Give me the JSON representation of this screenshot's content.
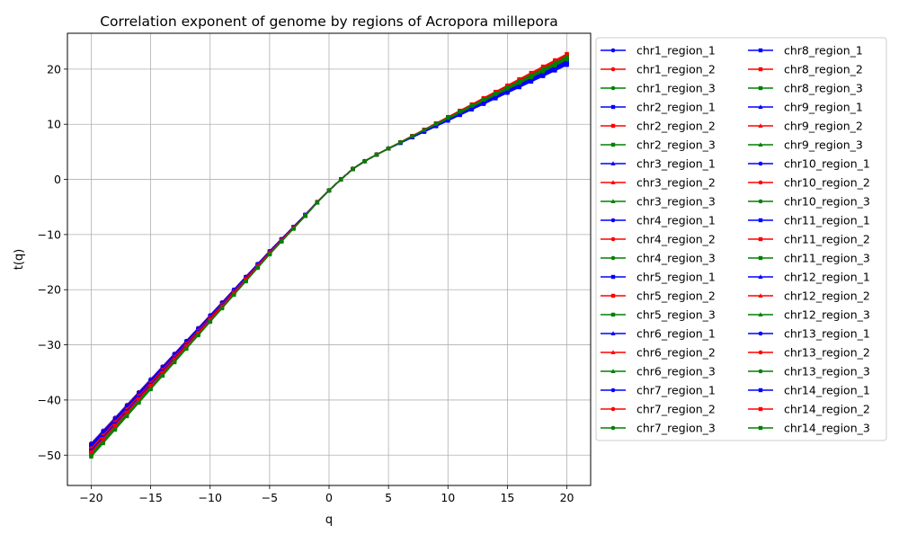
{
  "chart_data": {
    "type": "line",
    "title": "Correlation exponent of genome by regions of Acropora millepora",
    "xlabel": "q",
    "ylabel": "t(q)",
    "xlim": [
      -22,
      22
    ],
    "ylim": [
      -55.5,
      26.5
    ],
    "x_ticks": [
      -20,
      -15,
      -10,
      -5,
      0,
      5,
      10,
      15,
      20
    ],
    "x_tick_labels": [
      "−20",
      "−15",
      "−10",
      "−5",
      "0",
      "5",
      "10",
      "15",
      "20"
    ],
    "y_ticks": [
      -50,
      -40,
      -30,
      -20,
      -10,
      0,
      10,
      20
    ],
    "y_tick_labels": [
      "−50",
      "−40",
      "−30",
      "−20",
      "−10",
      "0",
      "10",
      "20"
    ],
    "grid": true,
    "legend_position": "outside-right",
    "legend_columns": 2,
    "x": [
      -20,
      -19,
      -18,
      -17,
      -16,
      -15,
      -14,
      -13,
      -12,
      -11,
      -10,
      -9,
      -8,
      -7,
      -6,
      -5,
      -4,
      -3,
      -2,
      -1,
      0,
      1,
      2,
      3,
      4,
      5,
      6,
      7,
      8,
      9,
      10,
      11,
      12,
      13,
      14,
      15,
      16,
      17,
      18,
      19,
      20
    ],
    "curve_model": {
      "anchor": [
        [
          0,
          -2
        ],
        [
          1,
          0
        ],
        [
          2,
          1.9
        ],
        [
          3,
          3.3
        ],
        [
          4,
          4.5
        ],
        [
          5,
          5.6
        ]
      ],
      "q_neg": {
        "A": 3.05,
        "B": 0.125
      },
      "q_pos": {
        "A": 1.06,
        "B": 1.0
      },
      "regions": {
        "region_1": 0.0,
        "region_2": 0.5,
        "region_3": 1.0
      }
    },
    "series": [
      {
        "name": "chr1_region_1",
        "color": "#0000ff",
        "marker": "circle",
        "neg_shift": 0.0,
        "pos_shift": 0.0
      },
      {
        "name": "chr1_region_2",
        "color": "#ff0000",
        "marker": "circle",
        "neg_shift": 0.1,
        "pos_shift": 0.9
      },
      {
        "name": "chr1_region_3",
        "color": "#008000",
        "marker": "circle",
        "neg_shift": 0.3,
        "pos_shift": 0.5
      },
      {
        "name": "chr2_region_1",
        "color": "#0000ff",
        "marker": "square",
        "neg_shift": 0.2,
        "pos_shift": 0.4
      },
      {
        "name": "chr2_region_2",
        "color": "#ff0000",
        "marker": "square",
        "neg_shift": 0.5,
        "pos_shift": 1.2
      },
      {
        "name": "chr2_region_3",
        "color": "#008000",
        "marker": "square",
        "neg_shift": 0.8,
        "pos_shift": 0.8
      },
      {
        "name": "chr3_region_1",
        "color": "#0000ff",
        "marker": "triangle",
        "neg_shift": 0.4,
        "pos_shift": 0.2
      },
      {
        "name": "chr3_region_2",
        "color": "#ff0000",
        "marker": "triangle",
        "neg_shift": 0.6,
        "pos_shift": 1.4
      },
      {
        "name": "chr3_region_3",
        "color": "#008000",
        "marker": "triangle",
        "neg_shift": 1.0,
        "pos_shift": 1.0
      },
      {
        "name": "chr4_region_1",
        "color": "#0000ff",
        "marker": "circle",
        "neg_shift": 0.6,
        "pos_shift": 0.5
      },
      {
        "name": "chr4_region_2",
        "color": "#ff0000",
        "marker": "circle",
        "neg_shift": 0.9,
        "pos_shift": 1.1
      },
      {
        "name": "chr4_region_3",
        "color": "#008000",
        "marker": "circle",
        "neg_shift": 1.2,
        "pos_shift": 0.7
      },
      {
        "name": "chr5_region_1",
        "color": "#0000ff",
        "marker": "square",
        "neg_shift": 0.8,
        "pos_shift": 0.1
      },
      {
        "name": "chr5_region_2",
        "color": "#ff0000",
        "marker": "square",
        "neg_shift": 1.1,
        "pos_shift": 1.3
      },
      {
        "name": "chr5_region_3",
        "color": "#008000",
        "marker": "square",
        "neg_shift": 1.6,
        "pos_shift": 0.6
      },
      {
        "name": "chr6_region_1",
        "color": "#0000ff",
        "marker": "triangle",
        "neg_shift": 1.0,
        "pos_shift": 0.3
      },
      {
        "name": "chr6_region_2",
        "color": "#ff0000",
        "marker": "triangle",
        "neg_shift": 1.3,
        "pos_shift": 1.0
      },
      {
        "name": "chr6_region_3",
        "color": "#008000",
        "marker": "triangle",
        "neg_shift": 1.9,
        "pos_shift": 0.9
      },
      {
        "name": "chr7_region_1",
        "color": "#0000ff",
        "marker": "circle",
        "neg_shift": 0.3,
        "pos_shift": 0.6
      },
      {
        "name": "chr7_region_2",
        "color": "#ff0000",
        "marker": "circle",
        "neg_shift": 0.7,
        "pos_shift": 1.5
      },
      {
        "name": "chr7_region_3",
        "color": "#008000",
        "marker": "circle",
        "neg_shift": 1.4,
        "pos_shift": 1.1
      },
      {
        "name": "chr8_region_1",
        "color": "#0000ff",
        "marker": "square",
        "neg_shift": 0.5,
        "pos_shift": -0.3
      },
      {
        "name": "chr8_region_2",
        "color": "#ff0000",
        "marker": "square",
        "neg_shift": 0.8,
        "pos_shift": 1.6
      },
      {
        "name": "chr8_region_3",
        "color": "#008000",
        "marker": "square",
        "neg_shift": 1.7,
        "pos_shift": 1.2
      },
      {
        "name": "chr9_region_1",
        "color": "#0000ff",
        "marker": "triangle",
        "neg_shift": 0.7,
        "pos_shift": 0.0
      },
      {
        "name": "chr9_region_2",
        "color": "#ff0000",
        "marker": "triangle",
        "neg_shift": 1.0,
        "pos_shift": 1.2
      },
      {
        "name": "chr9_region_3",
        "color": "#008000",
        "marker": "triangle",
        "neg_shift": 1.5,
        "pos_shift": 0.8
      },
      {
        "name": "chr10_region_1",
        "color": "#0000ff",
        "marker": "circle",
        "neg_shift": 0.9,
        "pos_shift": 0.7
      },
      {
        "name": "chr10_region_2",
        "color": "#ff0000",
        "marker": "circle",
        "neg_shift": 1.2,
        "pos_shift": 1.3
      },
      {
        "name": "chr10_region_3",
        "color": "#008000",
        "marker": "circle",
        "neg_shift": 1.8,
        "pos_shift": 0.6
      },
      {
        "name": "chr11_region_1",
        "color": "#0000ff",
        "marker": "square",
        "neg_shift": 1.1,
        "pos_shift": 0.4
      },
      {
        "name": "chr11_region_2",
        "color": "#ff0000",
        "marker": "square",
        "neg_shift": 1.4,
        "pos_shift": 1.4
      },
      {
        "name": "chr11_region_3",
        "color": "#008000",
        "marker": "square",
        "neg_shift": 2.0,
        "pos_shift": 1.0
      },
      {
        "name": "chr12_region_1",
        "color": "#0000ff",
        "marker": "triangle",
        "neg_shift": 1.2,
        "pos_shift": 0.2
      },
      {
        "name": "chr12_region_2",
        "color": "#ff0000",
        "marker": "triangle",
        "neg_shift": 1.5,
        "pos_shift": 1.1
      },
      {
        "name": "chr12_region_3",
        "color": "#008000",
        "marker": "triangle",
        "neg_shift": 2.1,
        "pos_shift": 0.9
      },
      {
        "name": "chr13_region_1",
        "color": "#0000ff",
        "marker": "circle",
        "neg_shift": 0.4,
        "pos_shift": 0.3
      },
      {
        "name": "chr13_region_2",
        "color": "#ff0000",
        "marker": "circle",
        "neg_shift": 0.9,
        "pos_shift": 1.2
      },
      {
        "name": "chr13_region_3",
        "color": "#008000",
        "marker": "circle",
        "neg_shift": 1.6,
        "pos_shift": 0.7
      },
      {
        "name": "chr14_region_1",
        "color": "#0000ff",
        "marker": "square",
        "neg_shift": 1.3,
        "pos_shift": -0.2
      },
      {
        "name": "chr14_region_2",
        "color": "#ff0000",
        "marker": "square",
        "neg_shift": 1.6,
        "pos_shift": 1.7
      },
      {
        "name": "chr14_region_3",
        "color": "#008000",
        "marker": "square",
        "neg_shift": 2.4,
        "pos_shift": 1.2
      }
    ]
  }
}
